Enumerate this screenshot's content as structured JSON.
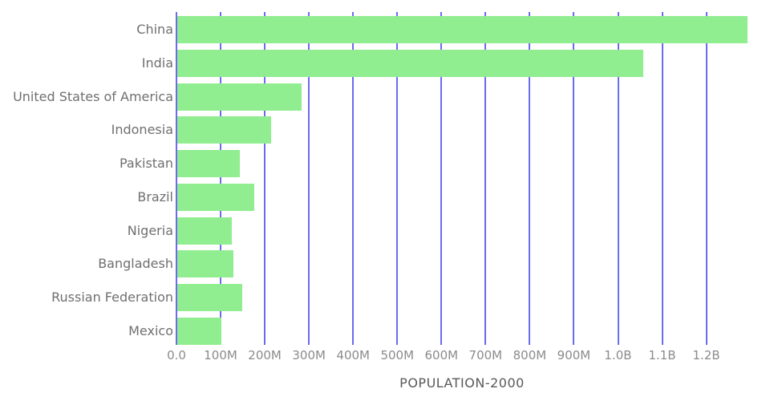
{
  "chart_data": {
    "type": "bar",
    "orientation": "horizontal",
    "title": "POPULATION-2000",
    "categories": [
      "China",
      "India",
      "United States of America",
      "Indonesia",
      "Pakistan",
      "Brazil",
      "Nigeria",
      "Bangladesh",
      "Russian Federation",
      "Mexico"
    ],
    "values_millions": [
      1291,
      1056,
      282,
      212,
      142,
      175,
      123,
      128,
      147,
      100
    ],
    "x_axis": {
      "label": "",
      "tick_labels": [
        "0.0",
        "100M",
        "200M",
        "300M",
        "400M",
        "500M",
        "600M",
        "700M",
        "800M",
        "900M",
        "1.0B",
        "1.1B",
        "1.2B"
      ],
      "tick_values_millions": [
        0,
        100,
        200,
        300,
        400,
        500,
        600,
        700,
        800,
        900,
        1000,
        1100,
        1200
      ],
      "range_millions": [
        0,
        1308
      ]
    },
    "grid": true,
    "legend": false,
    "colors": {
      "bar": "#90ee90",
      "gridline": "#6b6bf0",
      "category_text": "#6f6f6f",
      "tick_text": "#8b8b8b",
      "title_text": "#595959",
      "background": "#ffffff"
    }
  }
}
